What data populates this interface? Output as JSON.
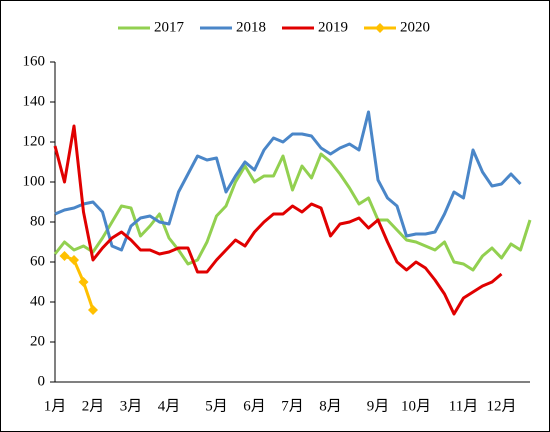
{
  "chart_data": {
    "type": "line",
    "categories": [
      "1月",
      null,
      null,
      null,
      "2月",
      null,
      null,
      null,
      "3月",
      null,
      null,
      null,
      "4月",
      null,
      null,
      null,
      null,
      "5月",
      null,
      null,
      null,
      "6月",
      null,
      null,
      null,
      "7月",
      null,
      null,
      null,
      "8月",
      null,
      null,
      null,
      null,
      "9月",
      null,
      null,
      null,
      "10月",
      null,
      null,
      null,
      null,
      "11月",
      null,
      null,
      null,
      "12月",
      null,
      null,
      null
    ],
    "series": [
      {
        "name": "2017",
        "color": "#92d050",
        "values": [
          64,
          70,
          66,
          68,
          65,
          72,
          80,
          88,
          87,
          73,
          78,
          84,
          72,
          66,
          59,
          61,
          70,
          83,
          88,
          100,
          108,
          100,
          103,
          103,
          113,
          96,
          108,
          102,
          114,
          110,
          104,
          97,
          89,
          92,
          81,
          81,
          76,
          71,
          70,
          68,
          66,
          70,
          60,
          59,
          56,
          63,
          67,
          62,
          69,
          66,
          81
        ]
      },
      {
        "name": "2018",
        "color": "#4a86c8",
        "values": [
          84,
          86,
          87,
          89,
          90,
          85,
          68,
          66,
          78,
          82,
          83,
          80,
          79,
          95,
          104,
          113,
          111,
          112,
          95,
          103,
          110,
          106,
          116,
          122,
          120,
          124,
          124,
          123,
          117,
          114,
          117,
          119,
          116,
          135,
          101,
          92,
          88,
          73,
          74,
          74,
          75,
          84,
          95,
          92,
          116,
          105,
          98,
          99,
          104,
          99,
          null
        ]
      },
      {
        "name": "2019",
        "color": "#e00000",
        "values": [
          118,
          100,
          128,
          85,
          61,
          67,
          72,
          75,
          71,
          66,
          66,
          64,
          65,
          67,
          67,
          55,
          55,
          61,
          66,
          71,
          68,
          75,
          80,
          84,
          84,
          88,
          85,
          89,
          87,
          73,
          79,
          80,
          82,
          77,
          81,
          70,
          60,
          56,
          60,
          57,
          51,
          44,
          34,
          42,
          45,
          48,
          50,
          54,
          null,
          null,
          null
        ]
      },
      {
        "name": "2020",
        "color": "#ffc000",
        "marker": "diamond",
        "values": [
          null,
          63,
          61,
          50,
          36,
          null,
          null,
          null,
          null,
          null,
          null,
          null,
          null,
          null,
          null,
          null,
          null,
          null,
          null,
          null,
          null,
          null,
          null,
          null,
          null,
          null,
          null,
          null,
          null,
          null,
          null,
          null,
          null,
          null,
          null,
          null,
          null,
          null,
          null,
          null,
          null,
          null,
          null,
          null,
          null,
          null,
          null,
          null,
          null,
          null,
          null
        ]
      }
    ],
    "ylim": [
      0,
      160
    ],
    "yticks": [
      0,
      20,
      40,
      60,
      80,
      100,
      120,
      140,
      160
    ],
    "grid": false,
    "legend": "top"
  }
}
